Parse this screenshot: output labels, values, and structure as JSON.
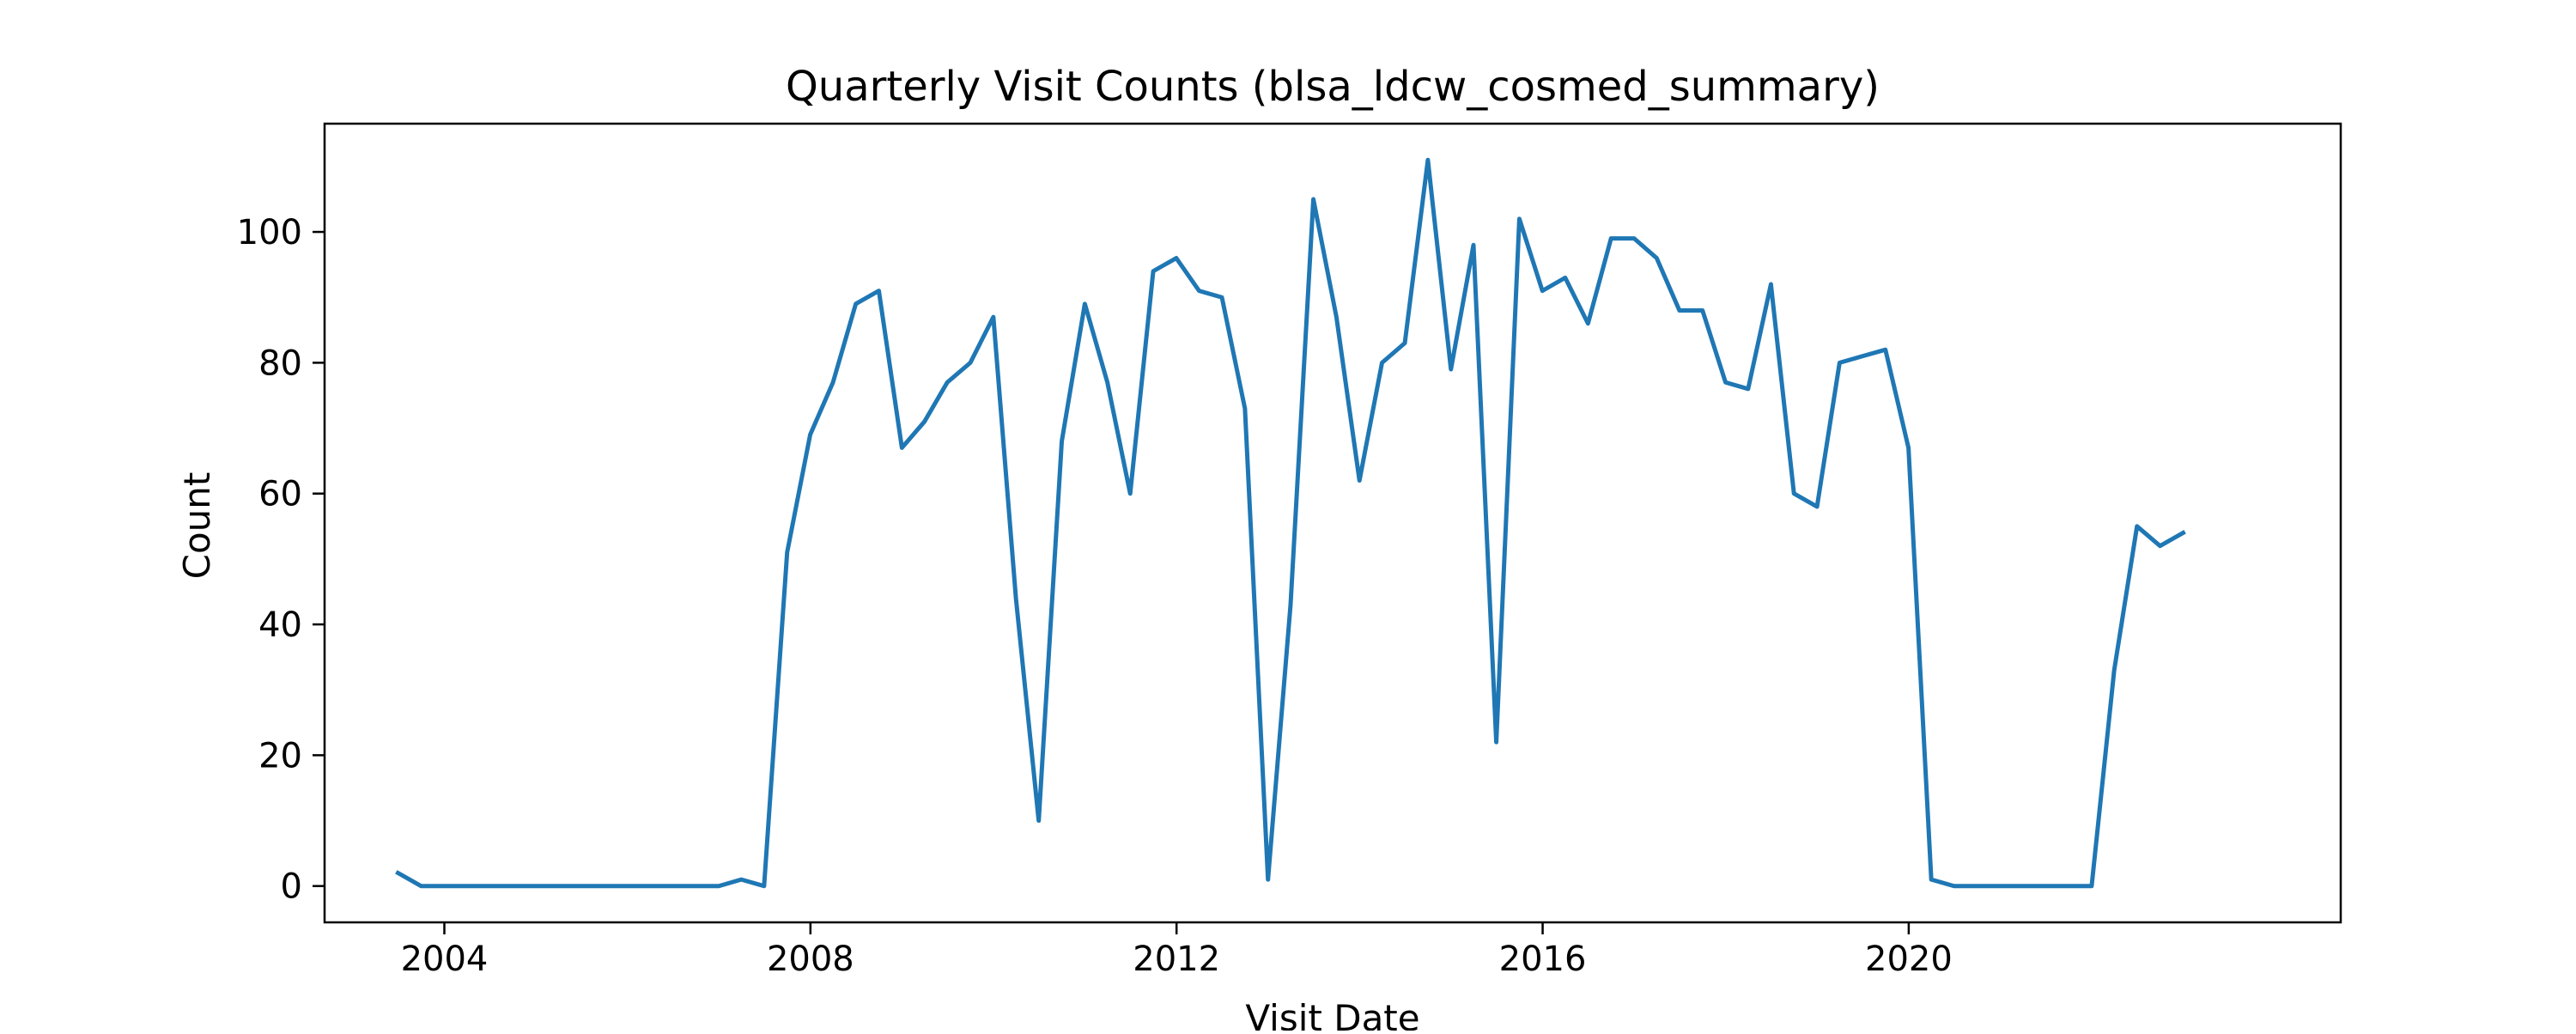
{
  "chart_data": {
    "type": "line",
    "title": "Quarterly Visit Counts (blsa_ldcw_cosmed_summary)",
    "xlabel": "Visit Date",
    "ylabel": "Count",
    "x_axis_type": "date",
    "xlim": [
      "2002-09-10",
      "2024-09-20"
    ],
    "ylim": [
      -5.55,
      116.55
    ],
    "x_ticks": [
      "2004-01-01",
      "2008-01-01",
      "2012-01-01",
      "2016-01-01",
      "2020-01-01"
    ],
    "x_tick_labels": [
      "2004",
      "2008",
      "2012",
      "2016",
      "2020"
    ],
    "y_ticks": [
      0,
      20,
      40,
      60,
      80,
      100
    ],
    "y_tick_labels": [
      "0",
      "20",
      "40",
      "60",
      "80",
      "100"
    ],
    "grid": false,
    "legend": "none",
    "line_color": "#1f77b4",
    "series": [
      {
        "x": [
          "2003-06-30",
          "2003-09-30",
          "2003-12-31",
          "2004-03-31",
          "2004-06-30",
          "2004-09-30",
          "2004-12-31",
          "2005-03-31",
          "2005-06-30",
          "2005-09-30",
          "2005-12-31",
          "2006-03-31",
          "2006-06-30",
          "2006-09-30",
          "2006-12-31",
          "2007-03-31",
          "2007-06-30",
          "2007-09-30",
          "2007-12-31",
          "2008-03-31",
          "2008-06-30",
          "2008-09-30",
          "2008-12-31",
          "2009-03-31",
          "2009-06-30",
          "2009-09-30",
          "2009-12-31",
          "2010-03-31",
          "2010-06-30",
          "2010-09-30",
          "2010-12-31",
          "2011-03-31",
          "2011-06-30",
          "2011-09-30",
          "2011-12-31",
          "2012-03-31",
          "2012-06-30",
          "2012-09-30",
          "2012-12-31",
          "2013-03-31",
          "2013-06-30",
          "2013-09-30",
          "2013-12-31",
          "2014-03-31",
          "2014-06-30",
          "2014-09-30",
          "2014-12-31",
          "2015-03-31",
          "2015-06-30",
          "2015-09-30",
          "2015-12-31",
          "2016-03-31",
          "2016-06-30",
          "2016-09-30",
          "2016-12-31",
          "2017-03-31",
          "2017-06-30",
          "2017-09-30",
          "2017-12-31",
          "2018-03-31",
          "2018-06-30",
          "2018-09-30",
          "2018-12-31",
          "2019-03-31",
          "2019-06-30",
          "2019-09-30",
          "2019-12-31",
          "2020-03-31",
          "2020-06-30",
          "2020-09-30",
          "2020-12-31",
          "2021-03-31",
          "2021-06-30",
          "2021-09-30",
          "2021-12-31",
          "2022-03-31",
          "2022-06-30",
          "2022-09-30",
          "2022-12-31"
        ],
        "values": [
          2,
          0,
          0,
          0,
          0,
          0,
          0,
          0,
          0,
          0,
          0,
          0,
          0,
          0,
          0,
          1,
          0,
          51,
          69,
          77,
          89,
          91,
          67,
          71,
          77,
          80,
          87,
          44,
          10,
          68,
          89,
          77,
          60,
          94,
          96,
          91,
          90,
          73,
          1,
          43,
          105,
          87,
          62,
          80,
          83,
          111,
          79,
          98,
          22,
          102,
          91,
          93,
          86,
          99,
          99,
          96,
          88,
          88,
          77,
          76,
          92,
          60,
          58,
          80,
          81,
          82,
          67,
          1,
          0,
          0,
          0,
          0,
          0,
          0,
          0,
          33,
          55,
          52,
          54
        ]
      }
    ]
  }
}
